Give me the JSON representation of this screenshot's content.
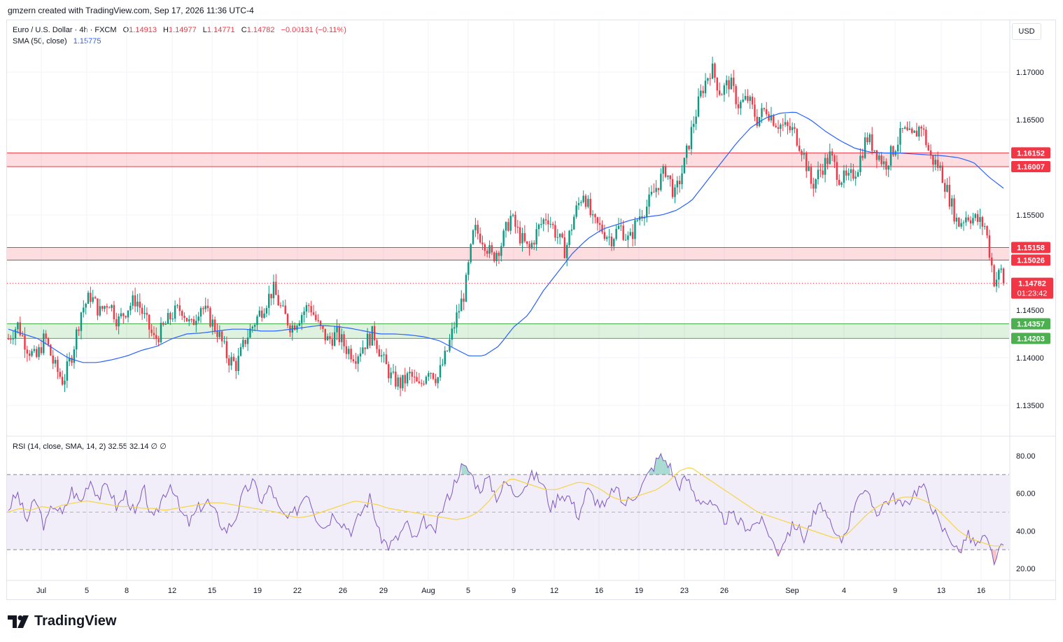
{
  "header": {
    "credit": "gmzern created with TradingView.com, Sep 17, 2026 11:36 UTC-4"
  },
  "legend": {
    "symbol": "Euro / U.S. Dollar · 4h · FXCM",
    "ohlc": [
      {
        "key": "O",
        "value": "1.14913"
      },
      {
        "key": "H",
        "value": "1.14977"
      },
      {
        "key": "L",
        "value": "1.14771"
      },
      {
        "key": "C",
        "value": "1.14782"
      }
    ],
    "change": "−0.00131 (−0.11%)",
    "sma_label": "SMA (50, close)",
    "sma_value": "1.15775"
  },
  "rsi_legend": {
    "label": "RSI (14, close, SMA, 14, 2)",
    "rsi": "32.55",
    "sma": "32.14",
    "extra1": "∅",
    "extra2": "∅"
  },
  "currency": "USD",
  "brand": {
    "name": "TradingView",
    "logo_icon": "tradingview-logo-icon"
  },
  "colors": {
    "up": "#089981",
    "down": "#f23645",
    "sma": "#2962ff",
    "rsi": "#7e57c2",
    "rsi_ma": "#f5d547",
    "resistance": "#f23645",
    "support": "#4caf50"
  },
  "chart_data": [
    {
      "type": "candlestick",
      "symbol": "EURUSD",
      "timeframe": "4h",
      "ylim": [
        1.132,
        1.175
      ],
      "y_ticks": [
        "1.17000",
        "1.16500",
        "1.15500",
        "1.14500",
        "1.14000",
        "1.13500"
      ],
      "x_ticks": [
        "Jul",
        "5",
        "8",
        "12",
        "15",
        "19",
        "22",
        "26",
        "29",
        "Aug",
        "5",
        "9",
        "12",
        "16",
        "19",
        "23",
        "26",
        "Sep",
        "4",
        "9",
        "13",
        "16"
      ],
      "close_path": [
        1.142,
        1.1435,
        1.1412,
        1.1398,
        1.1422,
        1.1392,
        1.1375,
        1.1405,
        1.145,
        1.1465,
        1.1448,
        1.146,
        1.1438,
        1.1452,
        1.1462,
        1.144,
        1.1418,
        1.1432,
        1.1446,
        1.1452,
        1.1432,
        1.1456,
        1.1442,
        1.1426,
        1.14,
        1.1392,
        1.142,
        1.1438,
        1.1455,
        1.1472,
        1.1448,
        1.1432,
        1.1445,
        1.1456,
        1.1432,
        1.1418,
        1.1425,
        1.141,
        1.1402,
        1.1415,
        1.1426,
        1.1398,
        1.1378,
        1.1372,
        1.1382,
        1.1368,
        1.139,
        1.1378,
        1.1405,
        1.144,
        1.147,
        1.1535,
        1.1525,
        1.1505,
        1.152,
        1.1548,
        1.1528,
        1.1512,
        1.1535,
        1.155,
        1.153,
        1.1512,
        1.155,
        1.1575,
        1.1542,
        1.1535,
        1.1525,
        1.1538,
        1.1522,
        1.1548,
        1.156,
        1.158,
        1.1598,
        1.157,
        1.1602,
        1.1646,
        1.1682,
        1.1705,
        1.1678,
        1.169,
        1.1665,
        1.1672,
        1.165,
        1.1662,
        1.1648,
        1.1642,
        1.1638,
        1.1618,
        1.158,
        1.1598,
        1.1612,
        1.159,
        1.1586,
        1.16,
        1.1632,
        1.1618,
        1.1602,
        1.162,
        1.1638,
        1.163,
        1.1645,
        1.161,
        1.16,
        1.157,
        1.154,
        1.155,
        1.1545,
        1.1538,
        1.148,
        1.1495
      ],
      "sma_path": [
        1.143,
        1.1425,
        1.142,
        1.141,
        1.14,
        1.1395,
        1.1395,
        1.1398,
        1.1402,
        1.1408,
        1.1412,
        1.142,
        1.1425,
        1.1426,
        1.1428,
        1.143,
        1.143,
        1.1428,
        1.1428,
        1.143,
        1.1432,
        1.1434,
        1.1433,
        1.1431,
        1.1428,
        1.1425,
        1.1425,
        1.1424,
        1.1422,
        1.1418,
        1.141,
        1.1402,
        1.1402,
        1.1412,
        1.1432,
        1.1445,
        1.147,
        1.149,
        1.151,
        1.1525,
        1.1535,
        1.154,
        1.1545,
        1.1548,
        1.155,
        1.1555,
        1.1565,
        1.1585,
        1.1605,
        1.1625,
        1.1642,
        1.1652,
        1.1657,
        1.1658,
        1.165,
        1.1638,
        1.1628,
        1.162,
        1.1616,
        1.1615,
        1.1615,
        1.1614,
        1.1613,
        1.1612,
        1.161,
        1.1605,
        1.159,
        1.1578
      ],
      "price_levels": [
        {
          "label": "1.16152",
          "value": 1.16152,
          "kind": "resistance"
        },
        {
          "label": "1.16007",
          "value": 1.16007,
          "kind": "resistance"
        },
        {
          "label": "1.15158",
          "value": 1.15158,
          "kind": "resistance"
        },
        {
          "label": "1.15026",
          "value": 1.15026,
          "kind": "resistance"
        },
        {
          "label": "1.14357",
          "value": 1.14357,
          "kind": "support"
        },
        {
          "label": "1.14203",
          "value": 1.14203,
          "kind": "support"
        }
      ],
      "last_price": {
        "label": "1.14782",
        "value": 1.14782,
        "countdown": "01:23:42"
      }
    },
    {
      "type": "line",
      "name": "RSI",
      "ylim": [
        15,
        85
      ],
      "y_ticks": [
        "80.00",
        "60.00",
        "40.00",
        "20.00"
      ],
      "bands": {
        "upper": 70,
        "middle": 50,
        "lower": 30
      },
      "rsi_path": [
        52,
        60,
        45,
        57,
        42,
        55,
        48,
        62,
        55,
        68,
        58,
        65,
        52,
        60,
        48,
        62,
        44,
        58,
        66,
        50,
        44,
        52,
        56,
        48,
        40,
        46,
        60,
        66,
        56,
        64,
        50,
        46,
        52,
        62,
        48,
        42,
        50,
        44,
        40,
        50,
        58,
        38,
        32,
        36,
        44,
        34,
        46,
        38,
        52,
        62,
        74,
        72,
        62,
        68,
        58,
        66,
        60,
        64,
        70,
        66,
        52,
        60,
        58,
        48,
        62,
        56,
        52,
        64,
        54,
        58,
        64,
        72,
        80,
        76,
        64,
        68,
        58,
        56,
        52,
        46,
        48,
        44,
        42,
        46,
        40,
        28,
        38,
        44,
        36,
        48,
        54,
        40,
        34,
        46,
        62,
        58,
        50,
        56,
        58,
        52,
        60,
        64,
        55,
        42,
        38,
        28,
        38,
        32,
        36,
        24,
        32
      ],
      "rsi_ma_path": [
        50,
        52,
        51,
        53,
        52,
        54,
        55,
        56,
        55,
        54,
        53,
        53,
        52,
        52,
        51,
        52,
        53,
        54,
        55,
        55,
        54,
        53,
        52,
        51,
        50,
        48,
        47,
        48,
        50,
        52,
        54,
        56,
        55,
        54,
        52,
        51,
        50,
        49,
        48,
        47,
        46,
        47,
        50,
        56,
        64,
        68,
        66,
        64,
        62,
        62,
        64,
        66,
        65,
        62,
        58,
        56,
        58,
        60,
        62,
        66,
        72,
        74,
        70,
        66,
        62,
        58,
        54,
        50,
        48,
        46,
        44,
        42,
        40,
        38,
        36,
        38,
        44,
        50,
        54,
        56,
        58,
        58,
        56,
        52,
        46,
        40,
        36,
        34,
        32,
        32
      ]
    }
  ]
}
